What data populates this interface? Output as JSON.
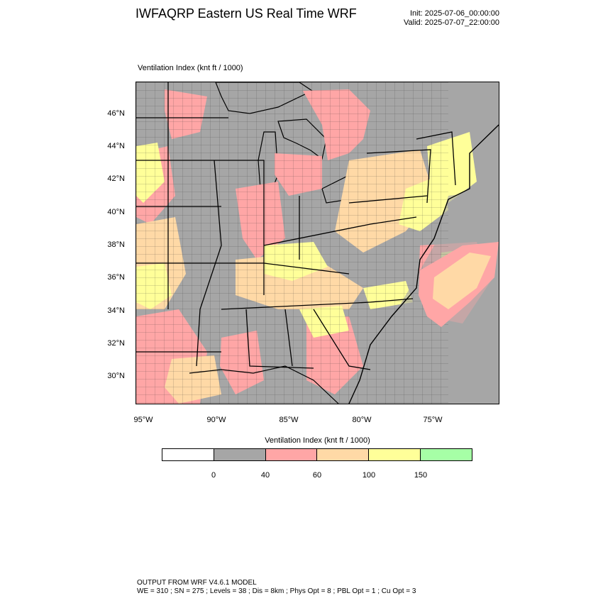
{
  "title": "IWFAQRP Eastern US Real Time WRF",
  "init": "Init: 2025-07-06_00:00:00",
  "valid": "Valid: 2025-07-07_22:00:00",
  "field_label": "Ventilation Index   (knt ft / 1000)",
  "lat_labels": [
    "46°N",
    "44°N",
    "42°N",
    "40°N",
    "38°N",
    "36°N",
    "34°N",
    "32°N",
    "30°N"
  ],
  "lon_labels": [
    "95°W",
    "90°W",
    "85°W",
    "80°W",
    "75°W"
  ],
  "legend": {
    "title": "Ventilation Index  (knt ft / 1000)",
    "bins": [
      {
        "color": "#ffffff"
      },
      {
        "color": "#a6a6a6"
      },
      {
        "color": "#ffa6a6"
      },
      {
        "color": "#ffd9a6"
      },
      {
        "color": "#ffff99"
      },
      {
        "color": "#a6ffa6"
      }
    ],
    "labels": [
      "0",
      "40",
      "60",
      "100",
      "150"
    ]
  },
  "footer": {
    "line1": "OUTPUT FROM WRF V4.6.1 MODEL",
    "line2": "WE = 310 ; SN = 275 ; Levels = 38 ; Dis = 8km ; Phys Opt = 8 ; PBL Opt = 1 ; Cu Opt = 3"
  }
}
